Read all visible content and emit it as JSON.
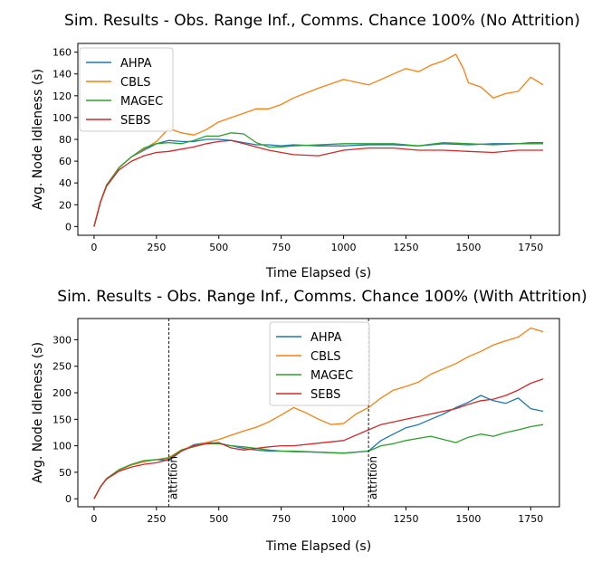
{
  "chart_data": [
    {
      "type": "line",
      "title": "Sim. Results - Obs. Range Inf., Comms. Chance 100% (No Attrition)",
      "xlabel": "Time Elapsed (s)",
      "ylabel": "Avg. Node Idleness (s)",
      "xlim": [
        -65,
        1865
      ],
      "ylim": [
        -8,
        168
      ],
      "xticks": [
        0,
        250,
        500,
        750,
        1000,
        1250,
        1500,
        1750
      ],
      "yticks": [
        0,
        20,
        40,
        60,
        80,
        100,
        120,
        140,
        160
      ],
      "legend": "top-left",
      "grid": false,
      "annotations": [],
      "series": [
        {
          "name": "AHPA",
          "color": "#1f77b4",
          "x": [
            0,
            25,
            50,
            100,
            150,
            200,
            250,
            300,
            350,
            400,
            450,
            500,
            550,
            600,
            650,
            700,
            750,
            800,
            900,
            1000,
            1100,
            1200,
            1300,
            1400,
            1500,
            1600,
            1700,
            1750,
            1800
          ],
          "y": [
            0,
            22,
            38,
            54,
            64,
            70,
            76,
            79,
            78,
            78,
            80,
            80,
            79,
            77,
            75,
            75,
            74,
            75,
            74,
            74,
            75,
            75,
            74,
            76,
            75,
            76,
            76,
            77,
            77
          ]
        },
        {
          "name": "CBLS",
          "color": "#ff7f0e",
          "x": [
            0,
            25,
            50,
            100,
            150,
            200,
            250,
            300,
            350,
            400,
            450,
            500,
            550,
            600,
            650,
            700,
            750,
            800,
            900,
            1000,
            1100,
            1150,
            1200,
            1250,
            1300,
            1350,
            1400,
            1450,
            1480,
            1500,
            1550,
            1600,
            1650,
            1700,
            1750,
            1800
          ],
          "y": [
            0,
            22,
            38,
            54,
            64,
            71,
            78,
            90,
            86,
            84,
            89,
            96,
            100,
            104,
            108,
            108,
            112,
            118,
            127,
            135,
            130,
            135,
            140,
            145,
            142,
            148,
            152,
            158,
            145,
            132,
            128,
            118,
            122,
            124,
            137,
            130
          ]
        },
        {
          "name": "MAGEC",
          "color": "#2ca02c",
          "x": [
            0,
            25,
            50,
            100,
            150,
            200,
            250,
            300,
            350,
            400,
            450,
            500,
            550,
            600,
            650,
            700,
            750,
            800,
            900,
            1000,
            1100,
            1200,
            1300,
            1400,
            1500,
            1600,
            1700,
            1750,
            1800
          ],
          "y": [
            0,
            22,
            38,
            54,
            64,
            72,
            76,
            77,
            76,
            79,
            83,
            83,
            86,
            85,
            77,
            73,
            73,
            74,
            75,
            76,
            76,
            76,
            74,
            77,
            76,
            75,
            76,
            76,
            76
          ]
        },
        {
          "name": "SEBS",
          "color": "#d62728",
          "x": [
            0,
            25,
            50,
            100,
            150,
            200,
            250,
            300,
            350,
            400,
            450,
            500,
            550,
            600,
            650,
            700,
            750,
            800,
            900,
            1000,
            1100,
            1200,
            1300,
            1400,
            1500,
            1600,
            1700,
            1750,
            1800
          ],
          "y": [
            0,
            22,
            37,
            52,
            60,
            65,
            68,
            69,
            71,
            73,
            76,
            78,
            79,
            76,
            73,
            70,
            68,
            66,
            65,
            70,
            72,
            72,
            70,
            70,
            69,
            68,
            70,
            70,
            70
          ]
        }
      ]
    },
    {
      "type": "line",
      "title": "Sim. Results - Obs. Range Inf., Comms. Chance 100% (With Attrition)",
      "xlabel": "Time Elapsed (s)",
      "ylabel": "Avg. Node Idleness (s)",
      "xlim": [
        -65,
        1865
      ],
      "ylim": [
        -15,
        340
      ],
      "xticks": [
        0,
        250,
        500,
        750,
        1000,
        1250,
        1500,
        1750
      ],
      "yticks": [
        0,
        50,
        100,
        150,
        200,
        250,
        300
      ],
      "legend": "top-center",
      "grid": false,
      "annotations": [
        {
          "x": 300,
          "text": "attrition"
        },
        {
          "x": 1100,
          "text": "attrition"
        }
      ],
      "series": [
        {
          "name": "AHPA",
          "color": "#1f77b4",
          "x": [
            0,
            25,
            50,
            100,
            150,
            200,
            250,
            300,
            350,
            400,
            450,
            500,
            550,
            600,
            650,
            700,
            750,
            800,
            900,
            1000,
            1100,
            1150,
            1200,
            1250,
            1300,
            1350,
            1400,
            1450,
            1500,
            1550,
            1600,
            1650,
            1700,
            1750,
            1800
          ],
          "y": [
            0,
            22,
            38,
            54,
            64,
            70,
            74,
            72,
            90,
            102,
            106,
            105,
            100,
            95,
            92,
            90,
            90,
            89,
            88,
            86,
            90,
            110,
            122,
            134,
            140,
            150,
            160,
            172,
            182,
            195,
            185,
            180,
            190,
            170,
            165
          ]
        },
        {
          "name": "CBLS",
          "color": "#ff7f0e",
          "x": [
            0,
            25,
            50,
            100,
            150,
            200,
            250,
            300,
            350,
            400,
            450,
            500,
            550,
            600,
            650,
            700,
            750,
            800,
            850,
            900,
            950,
            1000,
            1050,
            1100,
            1150,
            1200,
            1250,
            1300,
            1350,
            1400,
            1450,
            1500,
            1550,
            1600,
            1650,
            1700,
            1750,
            1800
          ],
          "y": [
            0,
            22,
            38,
            54,
            64,
            70,
            74,
            78,
            92,
            100,
            106,
            112,
            120,
            128,
            135,
            145,
            158,
            172,
            162,
            150,
            140,
            142,
            160,
            172,
            190,
            205,
            212,
            220,
            235,
            245,
            255,
            268,
            278,
            290,
            298,
            305,
            322,
            315
          ]
        },
        {
          "name": "MAGEC",
          "color": "#2ca02c",
          "x": [
            0,
            25,
            50,
            100,
            150,
            200,
            250,
            300,
            350,
            400,
            450,
            500,
            550,
            600,
            650,
            700,
            750,
            800,
            900,
            1000,
            1100,
            1150,
            1200,
            1250,
            1300,
            1350,
            1400,
            1450,
            1500,
            1550,
            1600,
            1650,
            1700,
            1750,
            1800
          ],
          "y": [
            0,
            22,
            38,
            55,
            65,
            72,
            74,
            76,
            92,
            98,
            104,
            104,
            100,
            98,
            95,
            92,
            90,
            90,
            88,
            86,
            90,
            100,
            104,
            110,
            114,
            118,
            112,
            106,
            116,
            122,
            118,
            125,
            130,
            136,
            140
          ]
        },
        {
          "name": "SEBS",
          "color": "#d62728",
          "x": [
            0,
            25,
            50,
            100,
            150,
            200,
            250,
            300,
            350,
            400,
            450,
            500,
            550,
            600,
            650,
            700,
            750,
            800,
            900,
            1000,
            1100,
            1150,
            1200,
            1250,
            1300,
            1350,
            1400,
            1450,
            1500,
            1550,
            1600,
            1650,
            1700,
            1750,
            1800
          ],
          "y": [
            0,
            22,
            37,
            52,
            60,
            65,
            68,
            74,
            90,
            100,
            104,
            106,
            96,
            92,
            95,
            98,
            100,
            100,
            105,
            110,
            130,
            140,
            145,
            150,
            155,
            160,
            165,
            170,
            178,
            185,
            188,
            195,
            205,
            218,
            226
          ]
        }
      ]
    }
  ]
}
